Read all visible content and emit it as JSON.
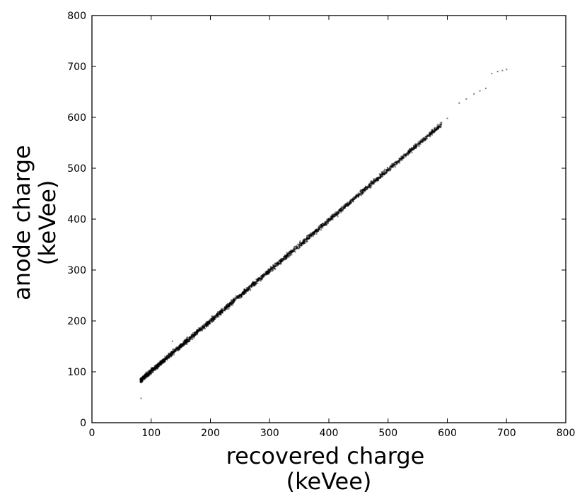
{
  "chart_data": {
    "type": "scatter",
    "title": "",
    "xlabel_line1": "recovered charge",
    "xlabel_line2": "(keVee)",
    "ylabel_line1": "anode charge",
    "ylabel_line2": "(keVee)",
    "xlim": [
      0,
      800
    ],
    "ylim": [
      0,
      800
    ],
    "xticks": [
      0,
      100,
      200,
      300,
      400,
      500,
      600,
      700,
      800
    ],
    "yticks": [
      0,
      100,
      200,
      300,
      400,
      500,
      600,
      700,
      800
    ],
    "grid": false,
    "legend": "none",
    "marker_color": "#000000",
    "series": [
      {
        "x_range": [
          82,
          700
        ],
        "slope": 0.99,
        "intercept": 2,
        "points": [
          [
            83,
            48
          ],
          [
            136,
            160
          ],
          [
            600,
            598
          ],
          [
            620,
            628
          ],
          [
            632,
            636
          ],
          [
            645,
            646
          ],
          [
            655,
            652
          ],
          [
            665,
            657
          ],
          [
            675,
            686
          ],
          [
            685,
            690
          ],
          [
            693,
            692
          ],
          [
            700,
            694
          ]
        ]
      }
    ]
  }
}
